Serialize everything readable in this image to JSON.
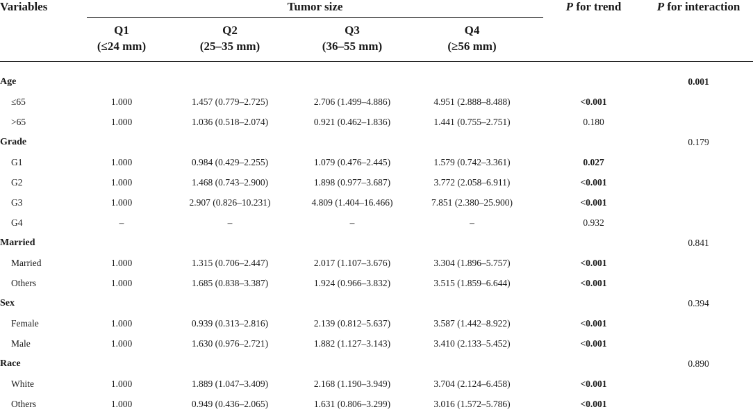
{
  "header": {
    "variables": "Variables",
    "tumor_size": "Tumor size",
    "p_trend_p": "P",
    "p_trend_rest": " for trend",
    "p_interaction_p": "P",
    "p_interaction_rest": " for interaction",
    "quartiles": [
      {
        "name": "Q1",
        "range": "(≤24 mm)"
      },
      {
        "name": "Q2",
        "range": "(25–35 mm)"
      },
      {
        "name": "Q3",
        "range": "(36–55 mm)"
      },
      {
        "name": "Q4",
        "range": "(≥56 mm)"
      }
    ]
  },
  "groups": [
    {
      "label": "Age",
      "interaction": "0.001",
      "interaction_bold": true,
      "rows": [
        {
          "label": "≤65",
          "q1": "1.000",
          "q2": "1.457 (0.779–2.725)",
          "q3": "2.706 (1.499–4.886)",
          "q4": "4.951 (2.888–8.488)",
          "trend": "<0.001",
          "trend_bold": true
        },
        {
          "label": ">65",
          "q1": "1.000",
          "q2": "1.036 (0.518–2.074)",
          "q3": "0.921 (0.462–1.836)",
          "q4": "1.441 (0.755–2.751)",
          "trend": "0.180",
          "trend_bold": false
        }
      ]
    },
    {
      "label": "Grade",
      "interaction": "0.179",
      "interaction_bold": false,
      "rows": [
        {
          "label": "G1",
          "q1": "1.000",
          "q2": "0.984 (0.429–2.255)",
          "q3": "1.079 (0.476–2.445)",
          "q4": "1.579 (0.742–3.361)",
          "trend": "0.027",
          "trend_bold": true
        },
        {
          "label": "G2",
          "q1": "1.000",
          "q2": "1.468 (0.743–2.900)",
          "q3": "1.898 (0.977–3.687)",
          "q4": "3.772 (2.058–6.911)",
          "trend": "<0.001",
          "trend_bold": true
        },
        {
          "label": "G3",
          "q1": "1.000",
          "q2": "2.907 (0.826–10.231)",
          "q3": "4.809 (1.404–16.466)",
          "q4": "7.851 (2.380–25.900)",
          "trend": "<0.001",
          "trend_bold": true
        },
        {
          "label": "G4",
          "q1": "–",
          "q2": "–",
          "q3": "–",
          "q4": "–",
          "trend": "0.932",
          "trend_bold": false
        }
      ]
    },
    {
      "label": "Married",
      "interaction": "0.841",
      "interaction_bold": false,
      "rows": [
        {
          "label": "Married",
          "q1": "1.000",
          "q2": "1.315 (0.706–2.447)",
          "q3": "2.017 (1.107–3.676)",
          "q4": "3.304 (1.896–5.757)",
          "trend": "<0.001",
          "trend_bold": true
        },
        {
          "label": "Others",
          "q1": "1.000",
          "q2": "1.685 (0.838–3.387)",
          "q3": "1.924 (0.966–3.832)",
          "q4": "3.515 (1.859–6.644)",
          "trend": "<0.001",
          "trend_bold": true
        }
      ]
    },
    {
      "label": "Sex",
      "interaction": "0.394",
      "interaction_bold": false,
      "rows": [
        {
          "label": "Female",
          "q1": "1.000",
          "q2": "0.939 (0.313–2.816)",
          "q3": "2.139 (0.812–5.637)",
          "q4": "3.587 (1.442–8.922)",
          "trend": "<0.001",
          "trend_bold": true
        },
        {
          "label": "Male",
          "q1": "1.000",
          "q2": "1.630 (0.976–2.721)",
          "q3": "1.882 (1.127–3.143)",
          "q4": "3.410 (2.133–5.452)",
          "trend": "<0.001",
          "trend_bold": true
        }
      ]
    },
    {
      "label": "Race",
      "interaction": "0.890",
      "interaction_bold": false,
      "rows": [
        {
          "label": "White",
          "q1": "1.000",
          "q2": "1.889 (1.047–3.409)",
          "q3": "2.168 (1.190–3.949)",
          "q4": "3.704 (2.124–6.458)",
          "trend": "<0.001",
          "trend_bold": true
        },
        {
          "label": "Others",
          "q1": "1.000",
          "q2": "0.949 (0.436–2.065)",
          "q3": "1.631 (0.806–3.299)",
          "q4": "3.016 (1.572–5.786)",
          "trend": "<0.001",
          "trend_bold": true
        }
      ]
    }
  ]
}
